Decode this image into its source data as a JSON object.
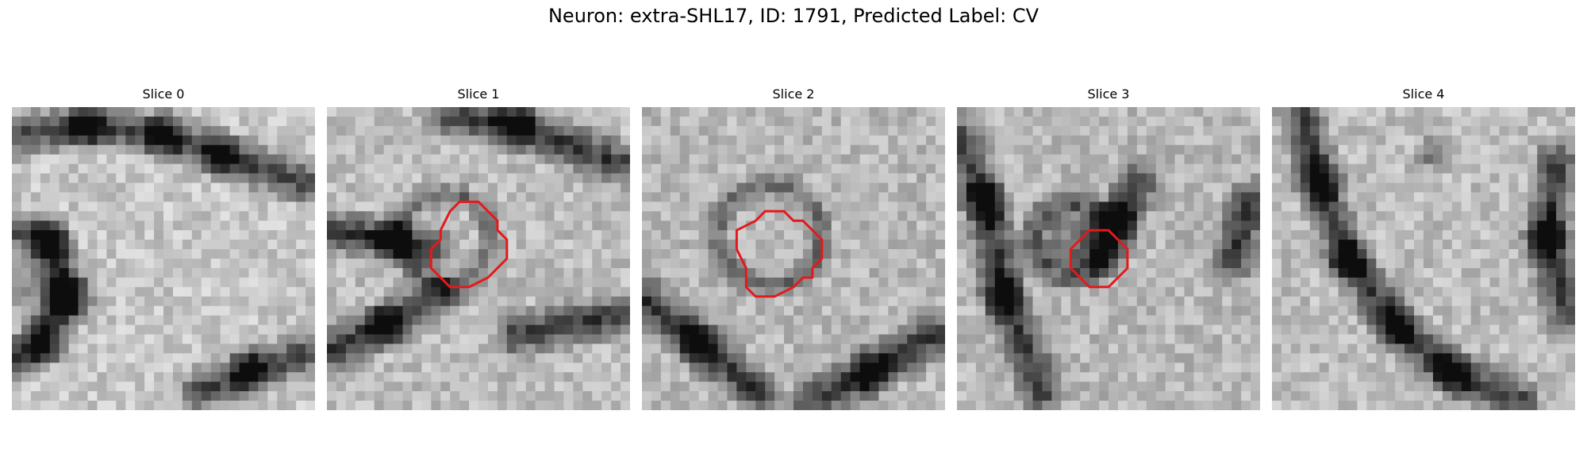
{
  "figure": {
    "title": "Neuron: extra-SHL17, ID: 1791, Predicted Label: CV"
  },
  "colors": {
    "outline": "#e31a1c",
    "background": "#ffffff"
  },
  "panels": [
    {
      "title": "Slice 0",
      "has_outline": false
    },
    {
      "title": "Slice 1",
      "has_outline": true
    },
    {
      "title": "Slice 2",
      "has_outline": true
    },
    {
      "title": "Slice 3",
      "has_outline": true
    },
    {
      "title": "Slice 4",
      "has_outline": false
    }
  ]
}
